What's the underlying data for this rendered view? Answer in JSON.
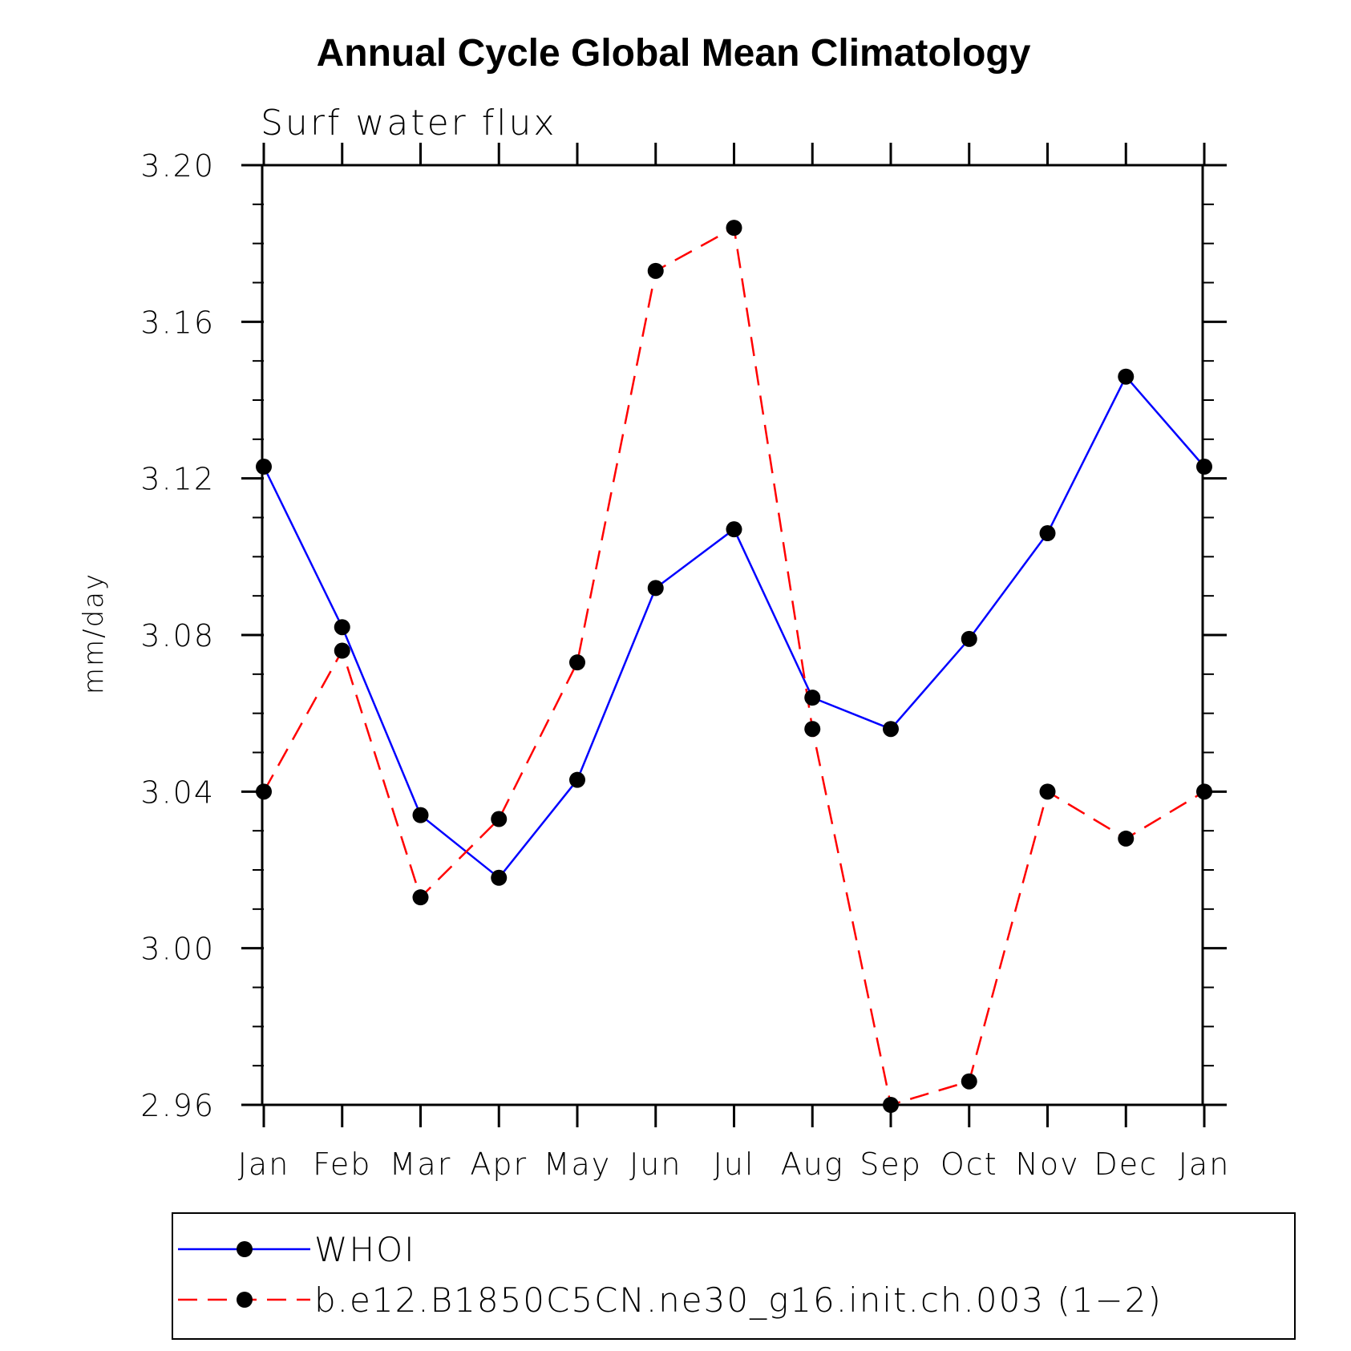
{
  "chart_data": {
    "type": "line",
    "title": "Annual Cycle Global Mean Climatology",
    "subtitle": "Surf water flux",
    "xlabel": "",
    "ylabel": "mm/day",
    "categories": [
      "Jan",
      "Feb",
      "Mar",
      "Apr",
      "May",
      "Jun",
      "Jul",
      "Aug",
      "Sep",
      "Oct",
      "Nov",
      "Dec",
      "Jan"
    ],
    "ylim": [
      2.96,
      3.2
    ],
    "yticks": [
      {
        "value": 2.96,
        "label": "2.96"
      },
      {
        "value": 3.0,
        "label": "3.00"
      },
      {
        "value": 3.04,
        "label": "3.04"
      },
      {
        "value": 3.08,
        "label": "3.08"
      },
      {
        "value": 3.12,
        "label": "3.12"
      },
      {
        "value": 3.16,
        "label": "3.16"
      },
      {
        "value": 3.2,
        "label": "3.20"
      }
    ],
    "yminor_step": 0.01,
    "grid": false,
    "legend_position": "bottom",
    "series": [
      {
        "name": "WHOI",
        "color": "#0000ff",
        "line_style": "solid",
        "marker": "filled-circle",
        "values": [
          3.123,
          3.082,
          3.034,
          3.018,
          3.043,
          3.092,
          3.107,
          3.064,
          3.056,
          3.079,
          3.106,
          3.146,
          3.123
        ]
      },
      {
        "name": "b.e12.B1850C5CN.ne30_g16.init.ch.003 (1−2)",
        "color": "#ff0000",
        "line_style": "dashed",
        "marker": "filled-circle",
        "values": [
          3.04,
          3.076,
          3.013,
          3.033,
          3.073,
          3.173,
          3.184,
          3.056,
          2.96,
          2.966,
          3.04,
          3.028,
          3.04
        ]
      }
    ]
  }
}
